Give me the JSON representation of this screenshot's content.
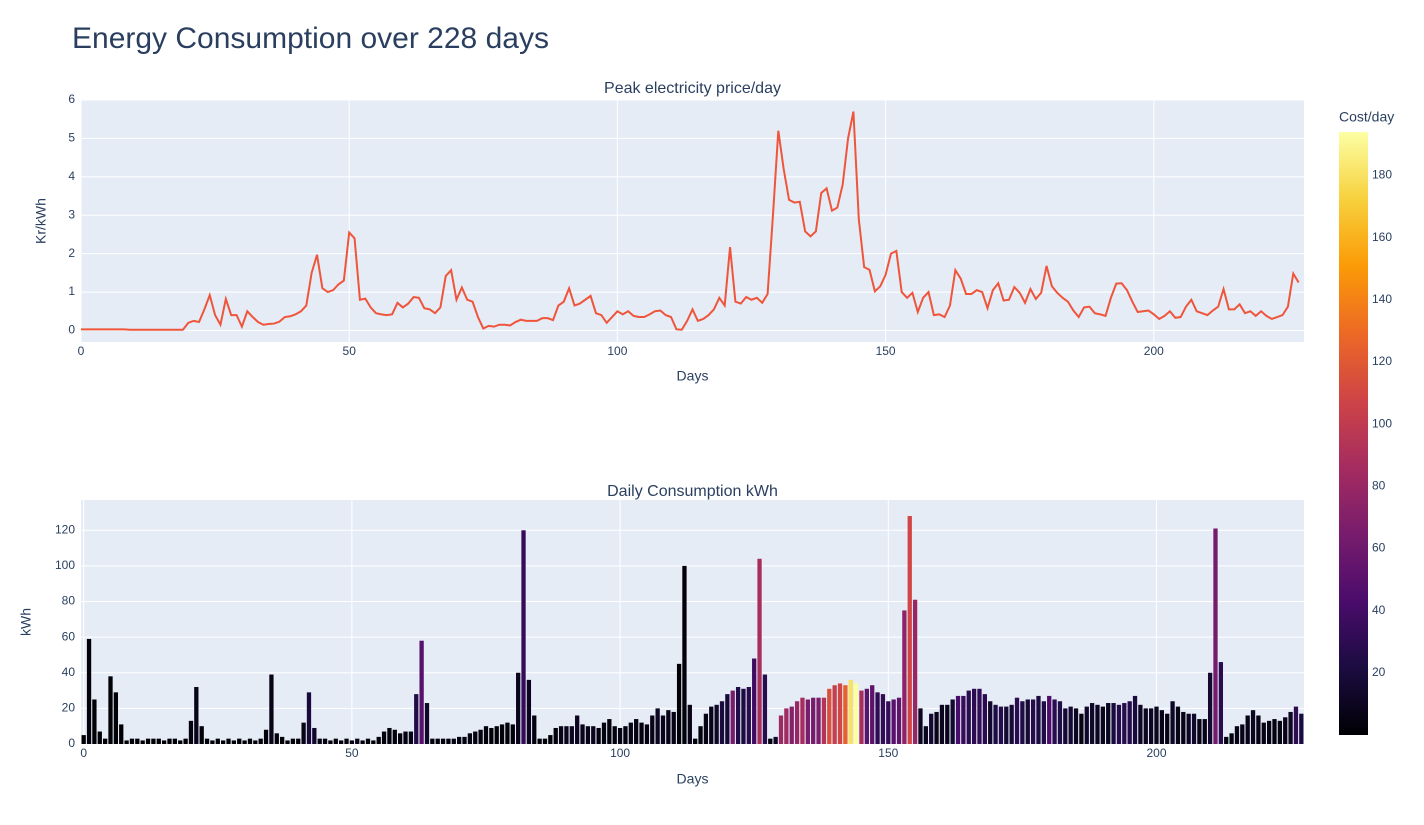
{
  "title": "Energy Consumption over 228 days",
  "chart_data": [
    {
      "type": "line",
      "title": "Peak electricity price/day",
      "x_label": "Days",
      "y_label": "Kr/kWh",
      "color": "#EF553B",
      "grid": true,
      "xlim": [
        0,
        228
      ],
      "xticks": [
        0,
        50,
        100,
        150,
        200
      ],
      "ylim": [
        -0.3,
        6
      ],
      "yticks": [
        0,
        1,
        2,
        3,
        4,
        5,
        6
      ],
      "x": [
        0,
        1,
        2,
        3,
        4,
        5,
        6,
        7,
        8,
        9,
        10,
        11,
        12,
        13,
        14,
        15,
        16,
        17,
        18,
        19,
        20,
        21,
        22,
        23,
        24,
        25,
        26,
        27,
        28,
        29,
        30,
        31,
        32,
        33,
        34,
        35,
        36,
        37,
        38,
        39,
        40,
        41,
        42,
        43,
        44,
        45,
        46,
        47,
        48,
        49,
        50,
        51,
        52,
        53,
        54,
        55,
        56,
        57,
        58,
        59,
        60,
        61,
        62,
        63,
        64,
        65,
        66,
        67,
        68,
        69,
        70,
        71,
        72,
        73,
        74,
        75,
        76,
        77,
        78,
        79,
        80,
        81,
        82,
        83,
        84,
        85,
        86,
        87,
        88,
        89,
        90,
        91,
        92,
        93,
        94,
        95,
        96,
        97,
        98,
        99,
        100,
        101,
        102,
        103,
        104,
        105,
        106,
        107,
        108,
        109,
        110,
        111,
        112,
        113,
        114,
        115,
        116,
        117,
        118,
        119,
        120,
        121,
        122,
        123,
        124,
        125,
        126,
        127,
        128,
        129,
        130,
        131,
        132,
        133,
        134,
        135,
        136,
        137,
        138,
        139,
        140,
        141,
        142,
        143,
        144,
        145,
        146,
        147,
        148,
        149,
        150,
        151,
        152,
        153,
        154,
        155,
        156,
        157,
        158,
        159,
        160,
        161,
        162,
        163,
        164,
        165,
        166,
        167,
        168,
        169,
        170,
        171,
        172,
        173,
        174,
        175,
        176,
        177,
        178,
        179,
        180,
        181,
        182,
        183,
        184,
        185,
        186,
        187,
        188,
        189,
        190,
        191,
        192,
        193,
        194,
        195,
        196,
        197,
        198,
        199,
        200,
        201,
        202,
        203,
        204,
        205,
        206,
        207,
        208,
        209,
        210,
        211,
        212,
        213,
        214,
        215,
        216,
        217,
        218,
        219,
        220,
        221,
        222,
        223,
        224,
        225,
        226,
        227
      ],
      "values": [
        0.03,
        0.03,
        0.03,
        0.03,
        0.03,
        0.03,
        0.03,
        0.03,
        0.03,
        0.02,
        0.02,
        0.02,
        0.02,
        0.02,
        0.02,
        0.02,
        0.02,
        0.02,
        0.02,
        0.02,
        0.2,
        0.25,
        0.22,
        0.55,
        0.92,
        0.4,
        0.15,
        0.82,
        0.4,
        0.4,
        0.1,
        0.5,
        0.35,
        0.22,
        0.15,
        0.17,
        0.18,
        0.23,
        0.35,
        0.37,
        0.42,
        0.5,
        0.65,
        1.5,
        1.97,
        1.1,
        1.0,
        1.05,
        1.2,
        1.3,
        2.55,
        2.4,
        0.8,
        0.83,
        0.6,
        0.45,
        0.42,
        0.4,
        0.42,
        0.72,
        0.6,
        0.7,
        0.87,
        0.85,
        0.58,
        0.55,
        0.45,
        0.6,
        1.42,
        1.57,
        0.8,
        1.12,
        0.8,
        0.75,
        0.35,
        0.05,
        0.12,
        0.1,
        0.15,
        0.15,
        0.13,
        0.22,
        0.28,
        0.25,
        0.25,
        0.25,
        0.32,
        0.32,
        0.27,
        0.65,
        0.75,
        1.1,
        0.65,
        0.7,
        0.8,
        0.9,
        0.45,
        0.4,
        0.2,
        0.35,
        0.5,
        0.42,
        0.5,
        0.38,
        0.35,
        0.35,
        0.42,
        0.5,
        0.52,
        0.4,
        0.35,
        0.03,
        0.02,
        0.25,
        0.55,
        0.25,
        0.3,
        0.4,
        0.55,
        0.85,
        0.65,
        2.17,
        0.75,
        0.7,
        0.87,
        0.8,
        0.85,
        0.72,
        0.95,
        3.0,
        5.2,
        4.2,
        3.4,
        3.33,
        3.35,
        2.58,
        2.45,
        2.58,
        3.58,
        3.7,
        3.12,
        3.2,
        3.8,
        5.0,
        5.7,
        2.9,
        1.65,
        1.58,
        1.02,
        1.15,
        1.45,
        2.0,
        2.07,
        1.0,
        0.85,
        0.98,
        0.48,
        0.85,
        1.0,
        0.4,
        0.42,
        0.35,
        0.65,
        1.57,
        1.35,
        0.95,
        0.95,
        1.05,
        1.0,
        0.58,
        1.05,
        1.23,
        0.78,
        0.8,
        1.13,
        0.98,
        0.72,
        1.08,
        0.82,
        0.98,
        1.68,
        1.15,
        0.98,
        0.85,
        0.75,
        0.52,
        0.35,
        0.6,
        0.62,
        0.45,
        0.42,
        0.38,
        0.85,
        1.22,
        1.23,
        1.05,
        0.75,
        0.48,
        0.5,
        0.52,
        0.42,
        0.3,
        0.38,
        0.5,
        0.33,
        0.35,
        0.62,
        0.8,
        0.5,
        0.45,
        0.4,
        0.52,
        0.62,
        1.08,
        0.55,
        0.55,
        0.68,
        0.45,
        0.5,
        0.38,
        0.5,
        0.38,
        0.3,
        0.35,
        0.4,
        0.62,
        1.48,
        1.25
      ]
    },
    {
      "type": "bar",
      "title": "Daily Consumption kWh",
      "x_label": "Days",
      "y_label": "kWh",
      "grid": true,
      "xlim": [
        -0.5,
        227.5
      ],
      "xticks": [
        0,
        50,
        100,
        150,
        200
      ],
      "ylim": [
        0,
        137
      ],
      "yticks": [
        0,
        20,
        40,
        60,
        80,
        100,
        120
      ],
      "x": [
        0,
        1,
        2,
        3,
        4,
        5,
        6,
        7,
        8,
        9,
        10,
        11,
        12,
        13,
        14,
        15,
        16,
        17,
        18,
        19,
        20,
        21,
        22,
        23,
        24,
        25,
        26,
        27,
        28,
        29,
        30,
        31,
        32,
        33,
        34,
        35,
        36,
        37,
        38,
        39,
        40,
        41,
        42,
        43,
        44,
        45,
        46,
        47,
        48,
        49,
        50,
        51,
        52,
        53,
        54,
        55,
        56,
        57,
        58,
        59,
        60,
        61,
        62,
        63,
        64,
        65,
        66,
        67,
        68,
        69,
        70,
        71,
        72,
        73,
        74,
        75,
        76,
        77,
        78,
        79,
        80,
        81,
        82,
        83,
        84,
        85,
        86,
        87,
        88,
        89,
        90,
        91,
        92,
        93,
        94,
        95,
        96,
        97,
        98,
        99,
        100,
        101,
        102,
        103,
        104,
        105,
        106,
        107,
        108,
        109,
        110,
        111,
        112,
        113,
        114,
        115,
        116,
        117,
        118,
        119,
        120,
        121,
        122,
        123,
        124,
        125,
        126,
        127,
        128,
        129,
        130,
        131,
        132,
        133,
        134,
        135,
        136,
        137,
        138,
        139,
        140,
        141,
        142,
        143,
        144,
        145,
        146,
        147,
        148,
        149,
        150,
        151,
        152,
        153,
        154,
        155,
        156,
        157,
        158,
        159,
        160,
        161,
        162,
        163,
        164,
        165,
        166,
        167,
        168,
        169,
        170,
        171,
        172,
        173,
        174,
        175,
        176,
        177,
        178,
        179,
        180,
        181,
        182,
        183,
        184,
        185,
        186,
        187,
        188,
        189,
        190,
        191,
        192,
        193,
        194,
        195,
        196,
        197,
        198,
        199,
        200,
        201,
        202,
        203,
        204,
        205,
        206,
        207,
        208,
        209,
        210,
        211,
        212,
        213,
        214,
        215,
        216,
        217,
        218,
        219,
        220,
        221,
        222,
        223,
        224,
        225,
        226,
        227
      ],
      "values": [
        5,
        59,
        25,
        7,
        3,
        38,
        29,
        11,
        2,
        3,
        3,
        2,
        3,
        3,
        3,
        2,
        3,
        3,
        2,
        3,
        13,
        32,
        10,
        3,
        2,
        3,
        2,
        3,
        2,
        3,
        2,
        3,
        2,
        3,
        8,
        39,
        6,
        4,
        2,
        3,
        3,
        12,
        29,
        9,
        3,
        3,
        2,
        3,
        2,
        3,
        2,
        3,
        2,
        3,
        2,
        4,
        7,
        9,
        8,
        6,
        7,
        7,
        28,
        58,
        23,
        3,
        3,
        3,
        3,
        3,
        4,
        4,
        6,
        7,
        8,
        10,
        9,
        10,
        11,
        12,
        11,
        40,
        120,
        36,
        16,
        3,
        3,
        5,
        9,
        10,
        10,
        10,
        16,
        11,
        10,
        10,
        9,
        12,
        14,
        10,
        9,
        10,
        12,
        14,
        12,
        11,
        16,
        20,
        16,
        19,
        18,
        45,
        100,
        22,
        3,
        10,
        17,
        21,
        22,
        24,
        28,
        30,
        32,
        31,
        32,
        48,
        104,
        39,
        3,
        4,
        16,
        20,
        21,
        24,
        26,
        25,
        26,
        26,
        26,
        31,
        33,
        34,
        33,
        36,
        34,
        30,
        31,
        33,
        29,
        28,
        24,
        25,
        26,
        75,
        128,
        81,
        20,
        10,
        17,
        18,
        22,
        22,
        25,
        27,
        27,
        30,
        31,
        31,
        28,
        24,
        22,
        21,
        21,
        22,
        26,
        24,
        25,
        25,
        27,
        24,
        27,
        25,
        24,
        20,
        21,
        20,
        17,
        21,
        23,
        22,
        21,
        23,
        23,
        22,
        23,
        24,
        27,
        22,
        20,
        20,
        21,
        19,
        17,
        24,
        21,
        18,
        17,
        17,
        14,
        14,
        40,
        121,
        46,
        4,
        6,
        10,
        11,
        16,
        19,
        16,
        12,
        13,
        14,
        13,
        15,
        18,
        21,
        17
      ],
      "colorbar": {
        "title": "Cost/day",
        "lim": [
          0,
          194
        ],
        "ticks": [
          20,
          40,
          60,
          80,
          100,
          120,
          140,
          160,
          180
        ],
        "colorscale": [
          [
            0,
            "#000004"
          ],
          [
            0.111,
            "#1b0c41"
          ],
          [
            0.222,
            "#4a0c6b"
          ],
          [
            0.333,
            "#781c6d"
          ],
          [
            0.444,
            "#a52c60"
          ],
          [
            0.556,
            "#cf4446"
          ],
          [
            0.667,
            "#ed6925"
          ],
          [
            0.778,
            "#fb9b06"
          ],
          [
            0.889,
            "#f7d13d"
          ],
          [
            1,
            "#fcffa4"
          ]
        ]
      },
      "cost": [
        0,
        2,
        1,
        0,
        0,
        1,
        1,
        0,
        0,
        0,
        0,
        0,
        0,
        0,
        0,
        0,
        0,
        0,
        0,
        0,
        3,
        8,
        2,
        2,
        2,
        1,
        0,
        2,
        1,
        1,
        0,
        2,
        1,
        1,
        1,
        7,
        1,
        1,
        1,
        1,
        1,
        6,
        19,
        14,
        6,
        3,
        2,
        3,
        2,
        4,
        5,
        7,
        2,
        2,
        1,
        2,
        3,
        4,
        3,
        4,
        4,
        5,
        24,
        49,
        13,
        2,
        1,
        2,
        4,
        5,
        3,
        4,
        5,
        5,
        3,
        1,
        1,
        1,
        2,
        2,
        1,
        9,
        34,
        9,
        4,
        1,
        1,
        2,
        2,
        7,
        8,
        11,
        10,
        8,
        8,
        9,
        4,
        5,
        3,
        4,
        5,
        4,
        6,
        5,
        4,
        4,
        7,
        10,
        8,
        8,
        6,
        1,
        2,
        6,
        2,
        3,
        5,
        8,
        12,
        20,
        18,
        65,
        24,
        22,
        28,
        38,
        88,
        28,
        3,
        12,
        83,
        84,
        71,
        80,
        87,
        65,
        64,
        67,
        93,
        115,
        103,
        109,
        125,
        180,
        194,
        87,
        51,
        52,
        30,
        32,
        35,
        50,
        54,
        75,
        109,
        79,
        10,
        9,
        17,
        7,
        9,
        8,
        16,
        42,
        36,
        29,
        29,
        33,
        28,
        14,
        23,
        26,
        16,
        18,
        29,
        24,
        18,
        27,
        22,
        24,
        45,
        29,
        24,
        17,
        16,
        10,
        6,
        13,
        14,
        10,
        9,
        9,
        20,
        27,
        28,
        25,
        20,
        11,
        10,
        10,
        9,
        6,
        6,
        12,
        7,
        6,
        11,
        14,
        7,
        6,
        16,
        63,
        29,
        4,
        3,
        6,
        7,
        7,
        10,
        6,
        6,
        5,
        4,
        5,
        6,
        11,
        31,
        21
      ]
    }
  ]
}
